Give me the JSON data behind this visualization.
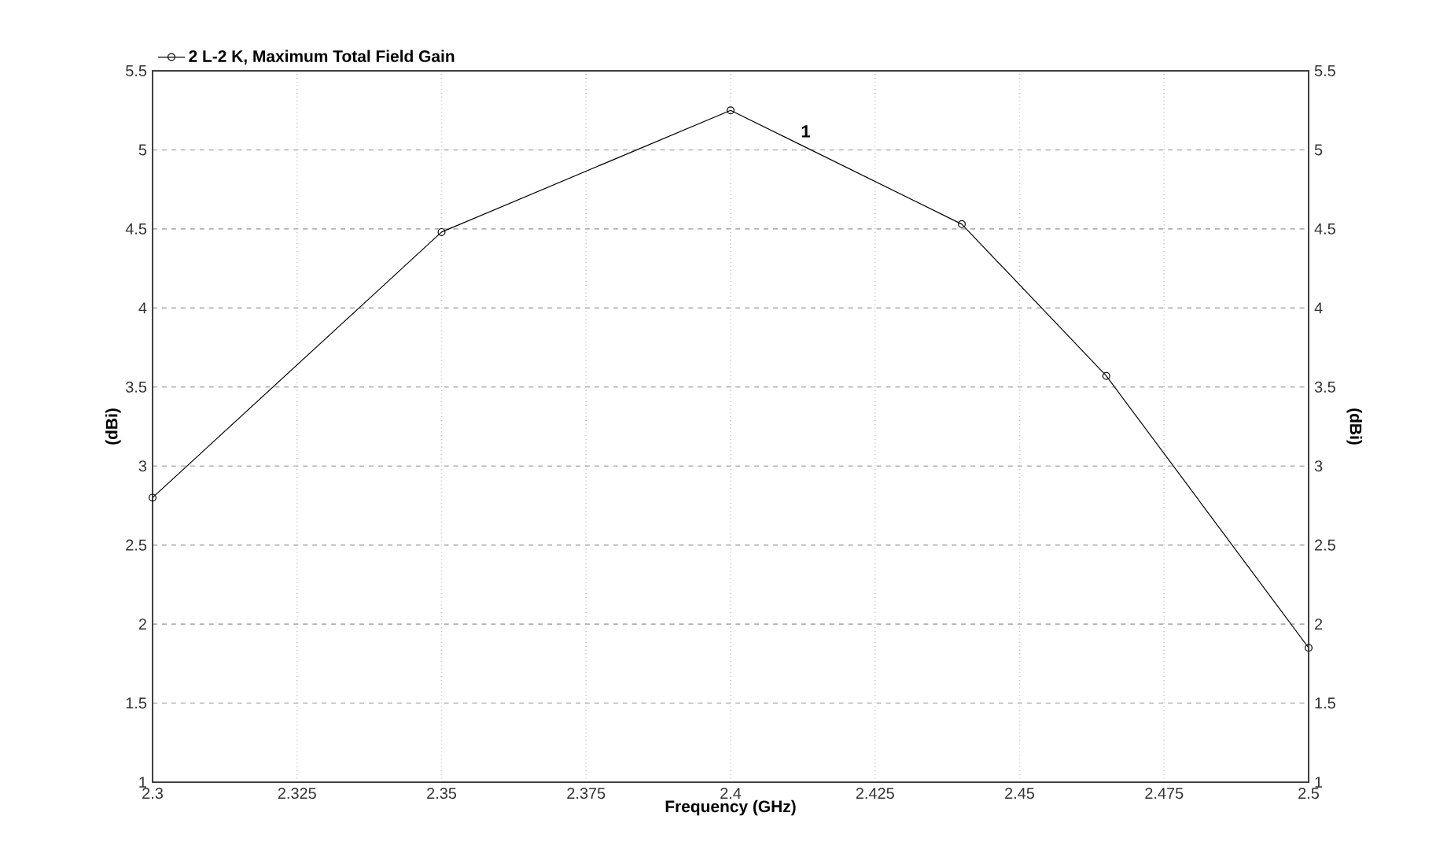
{
  "chart_data": {
    "type": "line",
    "xlabel": "Frequency (GHz)",
    "ylabel": "(dBi)",
    "y2label": "(dBi)",
    "x": [
      2.3,
      2.35,
      2.4,
      2.44,
      2.465,
      2.5
    ],
    "series": [
      {
        "name": "2 L-2 K, Maximum Total Field Gain",
        "color": "#000000",
        "values": [
          2.8,
          4.48,
          5.25,
          4.53,
          3.57,
          1.85
        ]
      }
    ],
    "xlim": [
      2.3,
      2.5
    ],
    "xticks": [
      2.3,
      2.325,
      2.35,
      2.375,
      2.4,
      2.425,
      2.45,
      2.475,
      2.5
    ],
    "ylim": [
      1,
      5.5
    ],
    "yticks": [
      1,
      1.5,
      2,
      2.5,
      3,
      3.5,
      4,
      4.5,
      5,
      5.5
    ],
    "y2lim": [
      1,
      5.5
    ],
    "y2ticks": [
      1,
      1.5,
      2,
      2.5,
      3,
      3.5,
      4,
      4.5,
      5,
      5.5
    ],
    "annotations": [
      "1"
    ],
    "grid": true,
    "legend": "top left",
    "marker": "circle",
    "line_style": "solid"
  }
}
